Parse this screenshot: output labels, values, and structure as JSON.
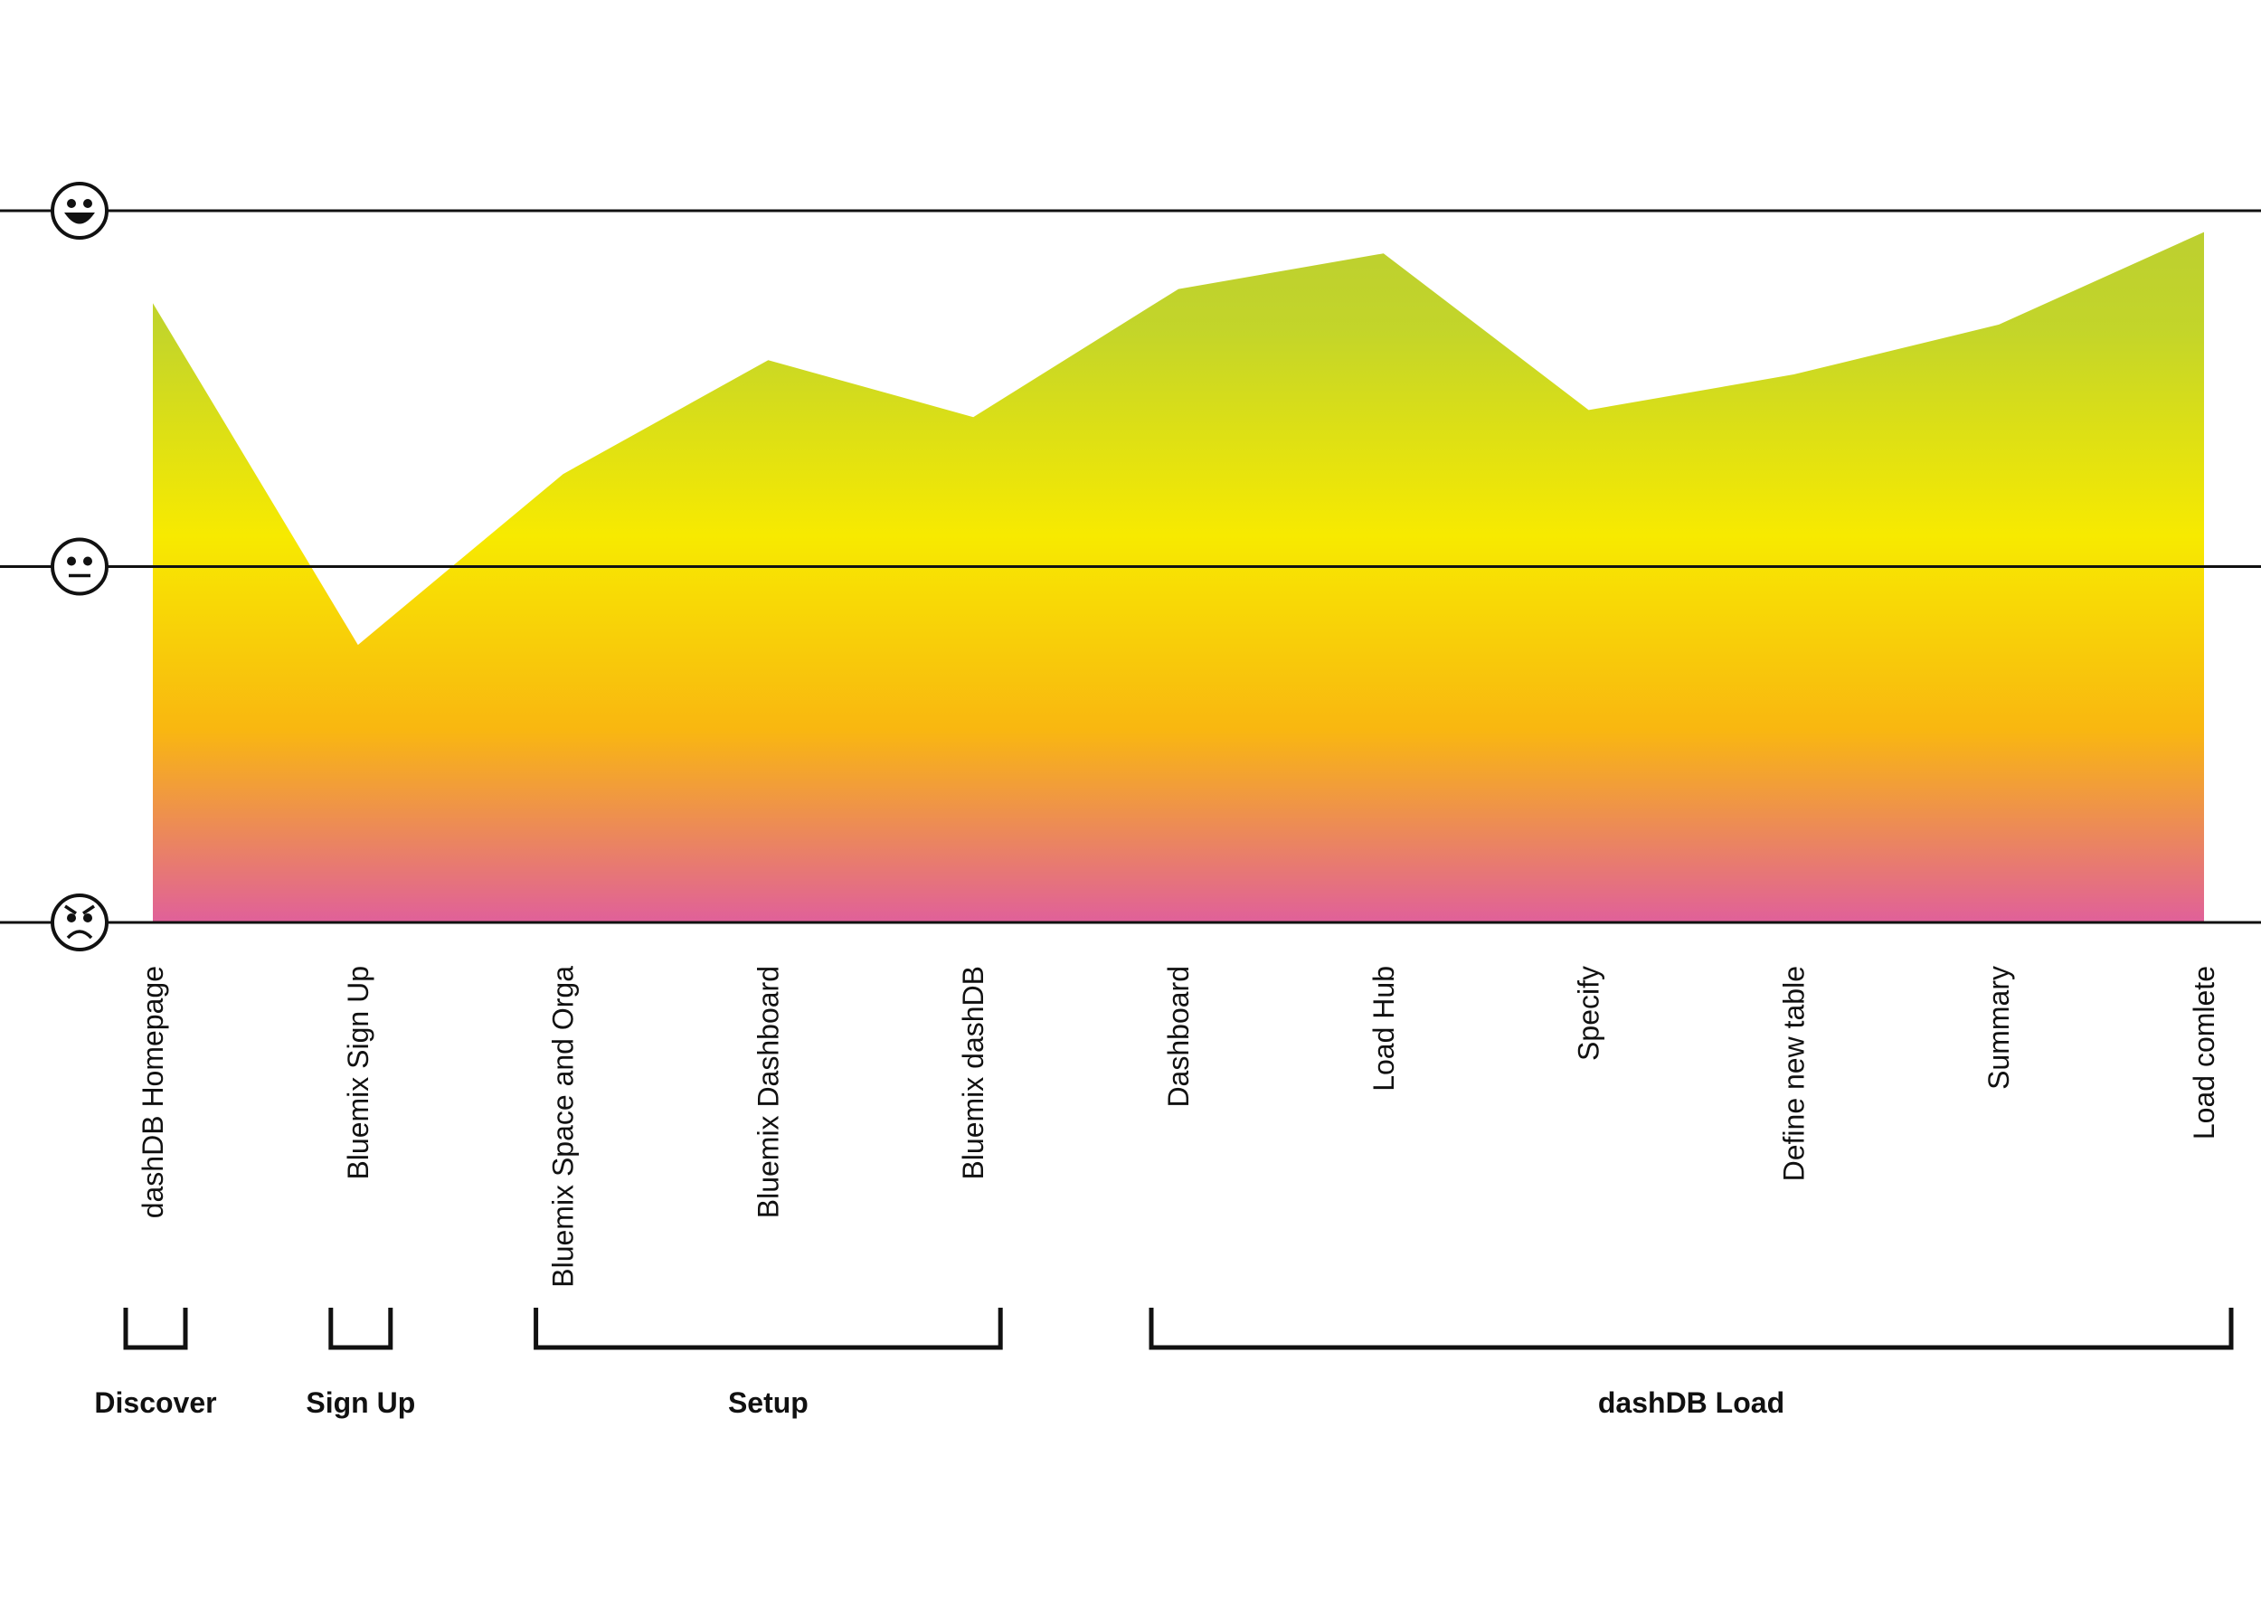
{
  "chart_data": {
    "type": "area",
    "title": "",
    "xlabel": "",
    "ylabel": "",
    "ylim": [
      0,
      1
    ],
    "y_levels": [
      {
        "value": 1.0,
        "icon": "happy-face-icon"
      },
      {
        "value": 0.5,
        "icon": "neutral-face-icon"
      },
      {
        "value": 0.0,
        "icon": "angry-face-icon"
      }
    ],
    "categories": [
      "dashDB Homepage",
      "Bluemix Sign Up",
      "Bluemix Space and Orga",
      "Bluemix Dashboard",
      "Bluemix dashDB",
      "Dashboard",
      "Load Hub",
      "Specify",
      "Define new table",
      "Summary",
      "Load comlete"
    ],
    "series": [
      {
        "values": [
          0.87,
          0.39,
          0.63,
          0.79,
          0.71,
          0.89,
          0.94,
          0.72,
          0.77,
          0.84,
          0.97
        ]
      }
    ],
    "phases": [
      {
        "label": "Discover",
        "from": 0,
        "to": 0
      },
      {
        "label": "Sign Up",
        "from": 1,
        "to": 1
      },
      {
        "label": "Setup",
        "from": 2,
        "to": 4
      },
      {
        "label": "dashDB Load",
        "from": 5,
        "to": 10
      }
    ],
    "gradient": [
      "#bccf30",
      "#f7ea00",
      "#f9b710",
      "#e0609a"
    ],
    "grid": true,
    "legend": "none"
  }
}
